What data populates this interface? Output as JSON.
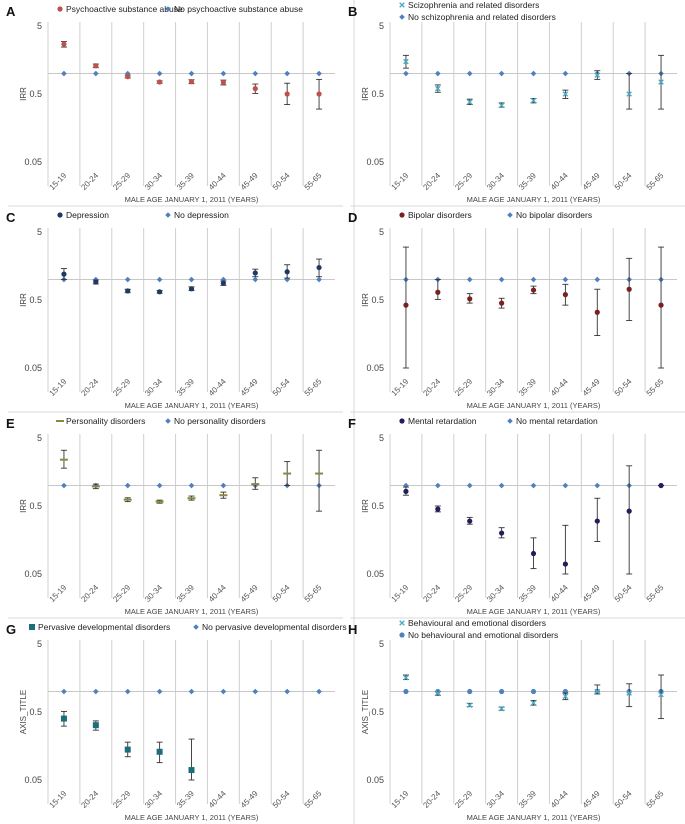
{
  "figure": {
    "categories": [
      "15-19",
      "20-24",
      "25-29",
      "30-34",
      "35-39",
      "40-44",
      "45-49",
      "50-54",
      "55-65"
    ],
    "y_ticks": [
      "5",
      "0.5",
      "0.05"
    ],
    "x_axis_title": "MALE AGE JANUARY 1, 2011 (YEARS)"
  },
  "chart_data": [
    {
      "panel": "A",
      "type": "scatter",
      "yscale": "log",
      "ylim": [
        0.05,
        5
      ],
      "ylabel": "IRR",
      "categories": [
        "15-19",
        "20-24",
        "25-29",
        "30-34",
        "35-39",
        "40-44",
        "45-49",
        "50-54",
        "55-65"
      ],
      "series": [
        {
          "name": "Psychoactive substance abuse",
          "color": "#c0504d",
          "marker": "dot",
          "values": [
            2.7,
            1.3,
            0.9,
            0.75,
            0.76,
            0.74,
            0.6,
            0.5,
            0.5
          ],
          "lower": [
            2.45,
            1.22,
            0.86,
            0.72,
            0.71,
            0.68,
            0.51,
            0.35,
            0.3
          ],
          "upper": [
            2.95,
            1.38,
            0.95,
            0.78,
            0.81,
            0.8,
            0.7,
            0.72,
            0.82
          ]
        },
        {
          "name": "No psychoactive substance abuse",
          "color": "#4f81bd",
          "marker": "diamond",
          "values": [
            1,
            1,
            1,
            1,
            1,
            1,
            1,
            1,
            1
          ]
        }
      ]
    },
    {
      "panel": "B",
      "type": "scatter",
      "yscale": "log",
      "ylim": [
        0.05,
        5
      ],
      "ylabel": "IRR",
      "categories": [
        "15-19",
        "20-24",
        "25-29",
        "30-34",
        "35-39",
        "40-44",
        "45-49",
        "50-54",
        "55-65"
      ],
      "series": [
        {
          "name": "Scizophrenia and related disorders",
          "color": "#4bacc6",
          "marker": "x",
          "values": [
            1.5,
            0.6,
            0.38,
            0.34,
            0.4,
            0.5,
            0.95,
            0.5,
            0.75
          ],
          "lower": [
            1.2,
            0.53,
            0.35,
            0.32,
            0.37,
            0.43,
            0.82,
            0.3,
            0.3
          ],
          "upper": [
            1.85,
            0.68,
            0.42,
            0.37,
            0.43,
            0.57,
            1.1,
            1.0,
            1.85
          ]
        },
        {
          "name": "No schizophrenia and related disorders",
          "color": "#4f81bd",
          "marker": "diamond",
          "values": [
            1,
            1,
            1,
            1,
            1,
            1,
            1,
            1,
            1
          ]
        }
      ]
    },
    {
      "panel": "C",
      "type": "scatter",
      "yscale": "log",
      "ylim": [
        0.05,
        5
      ],
      "ylabel": "IRR",
      "categories": [
        "15-19",
        "20-24",
        "25-29",
        "30-34",
        "35-39",
        "40-44",
        "45-49",
        "50-54",
        "55-65"
      ],
      "series": [
        {
          "name": "Depression",
          "color": "#1f3864",
          "marker": "dot",
          "values": [
            1.2,
            0.92,
            0.68,
            0.66,
            0.73,
            0.88,
            1.25,
            1.3,
            1.5
          ],
          "lower": [
            1.0,
            0.86,
            0.64,
            0.63,
            0.69,
            0.82,
            1.1,
            1.05,
            1.1
          ],
          "upper": [
            1.45,
            0.98,
            0.72,
            0.69,
            0.78,
            0.95,
            1.42,
            1.65,
            2.0
          ]
        },
        {
          "name": "No depression",
          "color": "#4f81bd",
          "marker": "diamond",
          "values": [
            1,
            1,
            1,
            1,
            1,
            1,
            1,
            1,
            1
          ]
        }
      ]
    },
    {
      "panel": "D",
      "type": "scatter",
      "yscale": "log",
      "ylim": [
        0.05,
        5
      ],
      "ylabel": "IRR",
      "categories": [
        "15-19",
        "20-24",
        "25-29",
        "30-34",
        "35-39",
        "40-44",
        "45-49",
        "50-54",
        "55-65"
      ],
      "series": [
        {
          "name": "Bipolar disorders",
          "color": "#7b1f1f",
          "marker": "dot",
          "values": [
            0.42,
            0.65,
            0.52,
            0.45,
            0.7,
            0.6,
            0.33,
            0.72,
            0.42
          ],
          "lower": [
            0.05,
            0.51,
            0.45,
            0.38,
            0.62,
            0.42,
            0.15,
            0.25,
            0.05
          ],
          "upper": [
            3.0,
            1.0,
            0.62,
            0.53,
            0.8,
            0.85,
            0.72,
            2.05,
            3.0
          ]
        },
        {
          "name": "No bipolar disorders",
          "color": "#4f81bd",
          "marker": "diamond",
          "values": [
            1,
            1,
            1,
            1,
            1,
            1,
            1,
            1,
            1
          ]
        }
      ]
    },
    {
      "panel": "E",
      "type": "scatter",
      "yscale": "log",
      "ylim": [
        0.05,
        5
      ],
      "ylabel": "IRR",
      "categories": [
        "15-19",
        "20-24",
        "25-29",
        "30-34",
        "35-39",
        "40-44",
        "45-49",
        "50-54",
        "55-65"
      ],
      "series": [
        {
          "name": "Personality disorders",
          "color": "#8c8a3a",
          "marker": "dash",
          "values": [
            2.4,
            0.97,
            0.62,
            0.58,
            0.65,
            0.72,
            1.05,
            1.5,
            1.5
          ],
          "lower": [
            1.8,
            0.9,
            0.58,
            0.55,
            0.61,
            0.65,
            0.88,
            1.0,
            0.42
          ],
          "upper": [
            3.3,
            1.05,
            0.66,
            0.61,
            0.7,
            0.8,
            1.3,
            2.25,
            3.3
          ]
        },
        {
          "name": "No personality disorders",
          "color": "#4f81bd",
          "marker": "diamond",
          "values": [
            1,
            1,
            1,
            1,
            1,
            1,
            1,
            1,
            1
          ]
        }
      ]
    },
    {
      "panel": "F",
      "type": "scatter",
      "yscale": "log",
      "ylim": [
        0.05,
        5
      ],
      "ylabel": "IRR",
      "categories": [
        "15-19",
        "20-24",
        "25-29",
        "30-34",
        "35-39",
        "40-44",
        "45-49",
        "50-54",
        "55-65"
      ],
      "series": [
        {
          "name": "Mental retardation",
          "color": "#1f1f5c",
          "marker": "dot",
          "values": [
            0.82,
            0.45,
            0.3,
            0.2,
            0.1,
            0.07,
            0.3,
            0.42,
            1
          ],
          "lower": [
            0.72,
            0.41,
            0.27,
            0.17,
            0.06,
            0.05,
            0.15,
            0.05,
            1
          ],
          "upper": [
            0.95,
            0.5,
            0.34,
            0.24,
            0.17,
            0.26,
            0.65,
            1.95,
            1
          ]
        },
        {
          "name": "No mental retardation",
          "color": "#4f81bd",
          "marker": "diamond",
          "values": [
            1,
            1,
            1,
            1,
            1,
            1,
            1,
            1,
            1
          ]
        }
      ]
    },
    {
      "panel": "G",
      "type": "scatter",
      "yscale": "log",
      "ylim": [
        0.05,
        5
      ],
      "ylabel": "AXIS_TITLE",
      "categories": [
        "15-19",
        "20-24",
        "25-29",
        "30-34",
        "35-39",
        "40-44",
        "45-49",
        "50-54",
        "55-65"
      ],
      "series": [
        {
          "name": "Pervasive developmental disorders",
          "color": "#1b6f7a",
          "marker": "square",
          "values": [
            0.4,
            0.32,
            0.14,
            0.13,
            0.07
          ],
          "lower": [
            0.31,
            0.27,
            0.11,
            0.09,
            0.05
          ],
          "upper": [
            0.51,
            0.37,
            0.18,
            0.18,
            0.2
          ]
        },
        {
          "name": "No pervasive developmental disorders",
          "color": "#4f81bd",
          "marker": "diamond",
          "values": [
            1,
            1,
            1,
            1,
            1,
            1,
            1,
            1,
            1
          ]
        }
      ]
    },
    {
      "panel": "H",
      "type": "scatter",
      "yscale": "log",
      "ylim": [
        0.05,
        5
      ],
      "ylabel": "AXIS_TITLE",
      "categories": [
        "15-19",
        "20-24",
        "25-29",
        "30-34",
        "35-39",
        "40-44",
        "45-49",
        "50-54",
        "55-65"
      ],
      "series": [
        {
          "name": "Behavioural and emotional disorders",
          "color": "#4bacc6",
          "marker": "x",
          "values": [
            1.6,
            0.95,
            0.63,
            0.56,
            0.68,
            0.85,
            1.0,
            0.95,
            0.9
          ],
          "lower": [
            1.5,
            0.88,
            0.6,
            0.53,
            0.63,
            0.76,
            0.92,
            0.6,
            0.4
          ],
          "upper": [
            1.75,
            1.0,
            0.67,
            0.59,
            0.74,
            0.95,
            1.25,
            1.3,
            1.75
          ]
        },
        {
          "name": "No behavioural and emotional disorders",
          "color": "#4f81bd",
          "marker": "dot",
          "values": [
            1,
            1,
            1,
            1,
            1,
            1,
            1,
            1,
            1
          ]
        }
      ]
    }
  ]
}
